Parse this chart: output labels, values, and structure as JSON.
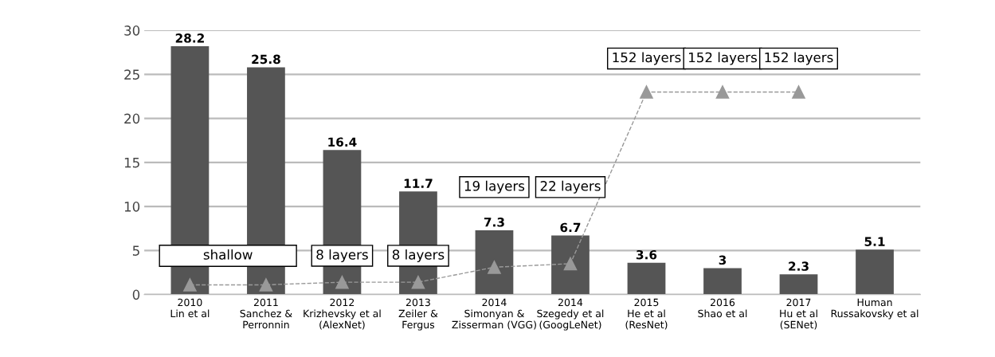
{
  "chart_data": {
    "type": "bar",
    "categories": [
      "2010\nLin et al",
      "2011\nSanchez &\nPerronnin",
      "2012\nKrizhevsky et al\n(AlexNet)",
      "2013\nZeiler &\nFergus",
      "2014\nSimonyan &\nZisserman (VGG)",
      "2014\nSzegedy et al\n(GoogLeNet)",
      "2015\nHe et al\n(ResNet)",
      "2016\nShao et al",
      "2017\nHu et al\n(SENet)",
      "Human\nRussakovsky et al"
    ],
    "series": [
      {
        "color": "#555555",
        "values": [
          28.2,
          25.8,
          16.4,
          11.7,
          7.3,
          6.7,
          3.6,
          3,
          2.3,
          5.1
        ],
        "data_labels": true
      },
      {
        "type": "line",
        "color": "#999999",
        "marker": "triangle",
        "line_style": "dashed",
        "values": [
          1.1,
          1.1,
          1.4,
          1.4,
          3.1,
          3.5,
          23.0,
          23.0,
          23.0,
          null
        ]
      }
    ],
    "ylim": [
      0,
      30
    ],
    "yticks": [
      0,
      5,
      10,
      15,
      20,
      25,
      30
    ],
    "grid": "y",
    "legend": false,
    "annotations": [
      "shallow",
      "8 layers",
      "8 layers",
      "19 layers",
      "22 layers",
      "152 layers",
      "152 layers",
      "152 layers"
    ]
  }
}
